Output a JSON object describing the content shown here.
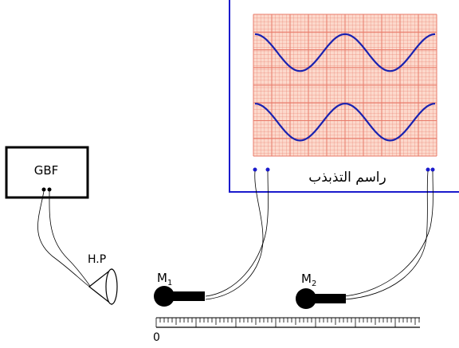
{
  "generator": {
    "label": "GBF"
  },
  "speaker": {
    "label": "H.P"
  },
  "oscilloscope": {
    "label": "راسم التذبذب",
    "frame_color": "#1a1acc",
    "grid_color": "#e87b6a",
    "screen_color": "#fcd9cc",
    "trace_color": "#1a22b0",
    "traces": [
      {
        "cycles": 2.0
      },
      {
        "cycles": 2.0
      }
    ]
  },
  "microphones": [
    {
      "label": "M",
      "subscript": "1"
    },
    {
      "label": "M",
      "subscript": "2"
    }
  ],
  "ruler": {
    "origin_label": "0"
  },
  "icons": [
    "microphone-icon",
    "loudspeaker-icon",
    "ruler-icon"
  ]
}
